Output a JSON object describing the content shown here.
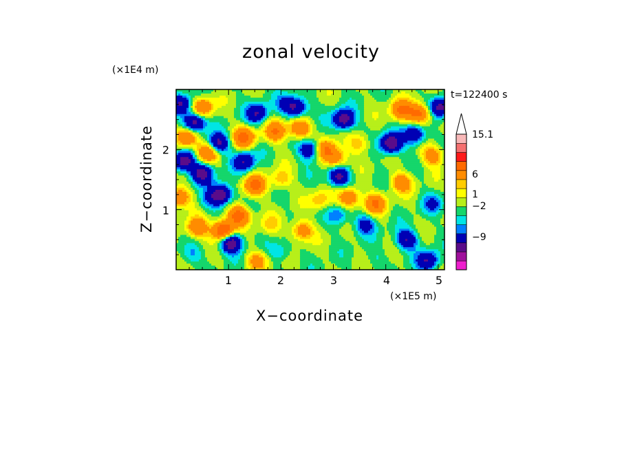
{
  "chart_data": {
    "type": "heatmap",
    "title": "zonal velocity",
    "xlabel": "X−coordinate",
    "ylabel": "Z−coordinate",
    "x_unit_label": "(×1E5 m)",
    "y_unit_label": "(×1E4 m)",
    "time_label": "t=122400 s",
    "xlim": [
      0,
      5.12
    ],
    "ylim": [
      0,
      3.0
    ],
    "x_ticks": [
      1,
      2,
      3,
      4,
      5
    ],
    "x_tick_labels": [
      "1",
      "2",
      "3",
      "4",
      "5"
    ],
    "y_ticks": [
      1,
      2
    ],
    "y_tick_labels": [
      "1",
      "2"
    ],
    "colorbar": {
      "levels": [
        -15,
        -12,
        -9,
        -6,
        -3,
        -2,
        -1,
        0,
        1,
        2,
        3,
        6,
        9,
        12,
        15.1
      ],
      "colors": [
        "#ee1fcd",
        "#a0109c",
        "#5a0c8a",
        "#0000b4",
        "#0080ff",
        "#00e5e5",
        "#15d66b",
        "#b7ef1a",
        "#ffff00",
        "#ffcc00",
        "#ff8c00",
        "#ff6a00",
        "#ff1a1a",
        "#f57070",
        "#f8b8b8"
      ],
      "tick_labels": [
        "15.1",
        "6",
        "1",
        "−2",
        "−9"
      ],
      "tick_values": [
        15.1,
        6,
        1,
        -2,
        -9
      ],
      "extend_max": true
    },
    "features": [
      {
        "x": 0.1,
        "z": 2.75,
        "v": -6
      },
      {
        "x": 0.35,
        "z": 2.45,
        "v": -8
      },
      {
        "x": 0.15,
        "z": 1.8,
        "v": -8
      },
      {
        "x": 0.5,
        "z": 1.6,
        "v": -7
      },
      {
        "x": 0.85,
        "z": 1.25,
        "v": -9
      },
      {
        "x": 1.05,
        "z": 0.45,
        "v": -9
      },
      {
        "x": 0.8,
        "z": 2.1,
        "v": -7
      },
      {
        "x": 1.3,
        "z": 1.8,
        "v": -6
      },
      {
        "x": 1.55,
        "z": 2.6,
        "v": -6
      },
      {
        "x": 2.3,
        "z": 2.7,
        "v": -6
      },
      {
        "x": 2.55,
        "z": 2.0,
        "v": -6
      },
      {
        "x": 3.2,
        "z": 2.5,
        "v": -8
      },
      {
        "x": 3.1,
        "z": 1.55,
        "v": -7
      },
      {
        "x": 4.1,
        "z": 2.1,
        "v": -9
      },
      {
        "x": 4.55,
        "z": 2.25,
        "v": -6
      },
      {
        "x": 3.6,
        "z": 0.75,
        "v": -4
      },
      {
        "x": 3.1,
        "z": 0.9,
        "v": -3
      },
      {
        "x": 4.4,
        "z": 0.5,
        "v": -6
      },
      {
        "x": 4.9,
        "z": 1.1,
        "v": -3
      },
      {
        "x": 4.8,
        "z": 0.15,
        "v": -6
      },
      {
        "x": 5.05,
        "z": 2.7,
        "v": -7
      },
      {
        "x": 0.5,
        "z": 2.7,
        "v": 6
      },
      {
        "x": 0.2,
        "z": 2.2,
        "v": 7
      },
      {
        "x": 0.6,
        "z": 1.95,
        "v": 6
      },
      {
        "x": 0.9,
        "z": 0.65,
        "v": 10
      },
      {
        "x": 1.2,
        "z": 0.9,
        "v": 8
      },
      {
        "x": 1.5,
        "z": 1.4,
        "v": 7
      },
      {
        "x": 1.3,
        "z": 2.2,
        "v": 7
      },
      {
        "x": 1.9,
        "z": 2.3,
        "v": 6
      },
      {
        "x": 2.35,
        "z": 2.35,
        "v": 6
      },
      {
        "x": 2.85,
        "z": 2.0,
        "v": 6
      },
      {
        "x": 3.05,
        "z": 1.85,
        "v": 5
      },
      {
        "x": 3.3,
        "z": 1.2,
        "v": 6
      },
      {
        "x": 2.4,
        "z": 0.65,
        "v": 5
      },
      {
        "x": 3.8,
        "z": 1.1,
        "v": 6
      },
      {
        "x": 4.3,
        "z": 1.45,
        "v": 5
      },
      {
        "x": 4.3,
        "z": 2.65,
        "v": 7
      },
      {
        "x": 4.65,
        "z": 2.6,
        "v": 7
      },
      {
        "x": 4.9,
        "z": 1.9,
        "v": 5
      },
      {
        "x": 0.4,
        "z": 0.7,
        "v": 6
      },
      {
        "x": 1.55,
        "z": 0.15,
        "v": 4
      },
      {
        "x": 0.05,
        "z": 1.2,
        "v": 6
      },
      {
        "x": 2.0,
        "z": 1.5,
        "v": 3
      },
      {
        "x": 1.8,
        "z": 0.75,
        "v": 2
      },
      {
        "x": 2.75,
        "z": 1.15,
        "v": 3
      },
      {
        "x": 0.3,
        "z": 0.25,
        "v": -2
      },
      {
        "x": 2.0,
        "z": 0.3,
        "v": -2
      },
      {
        "x": 3.8,
        "z": 0.2,
        "v": -1
      },
      {
        "x": 2.1,
        "z": 2.75,
        "v": -3
      },
      {
        "x": 0.6,
        "z": 1.15,
        "v": -2
      },
      {
        "x": 3.5,
        "z": 2.1,
        "v": 3
      }
    ]
  }
}
